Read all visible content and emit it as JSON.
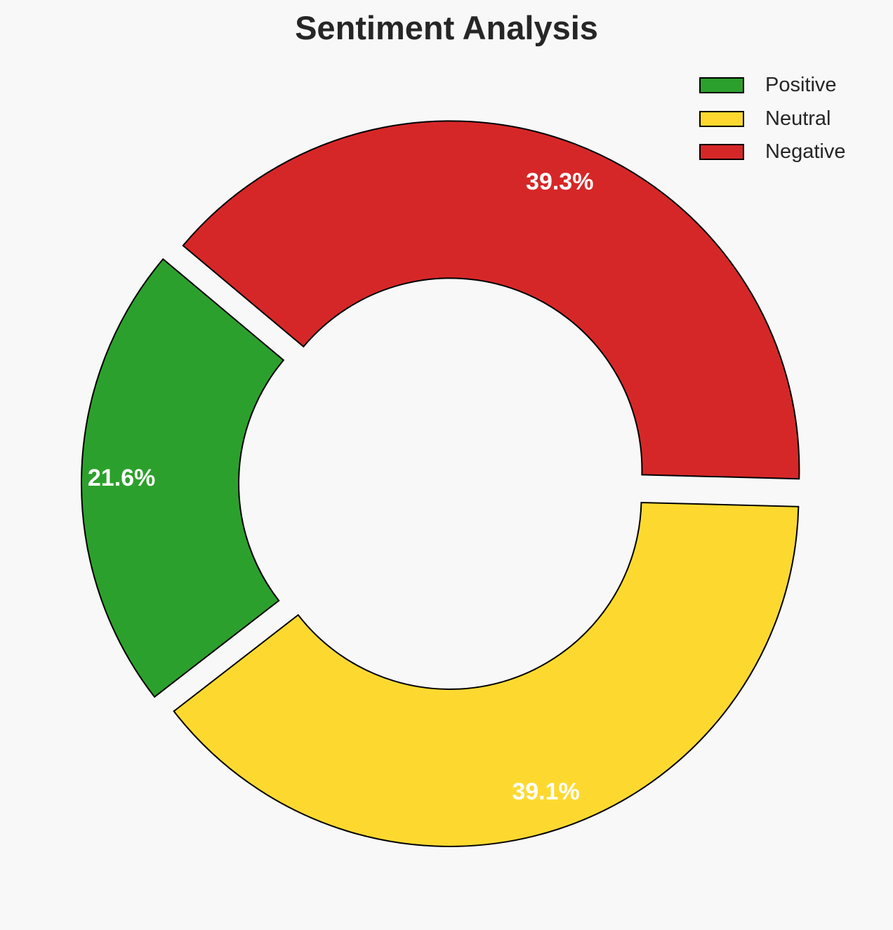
{
  "chart_data": {
    "type": "pie",
    "variant": "donut",
    "title": "Sentiment Analysis",
    "categories": [
      "Positive",
      "Neutral",
      "Negative"
    ],
    "values": [
      21.6,
      39.1,
      39.3
    ],
    "data_labels": [
      "21.6%",
      "39.1%",
      "39.3%"
    ],
    "colors": [
      "#2ca02c",
      "#fdd930",
      "#d62728"
    ],
    "start_angle_deg": 140,
    "direction": "counterclockwise",
    "exploded": true,
    "legend_position": "top-right"
  }
}
